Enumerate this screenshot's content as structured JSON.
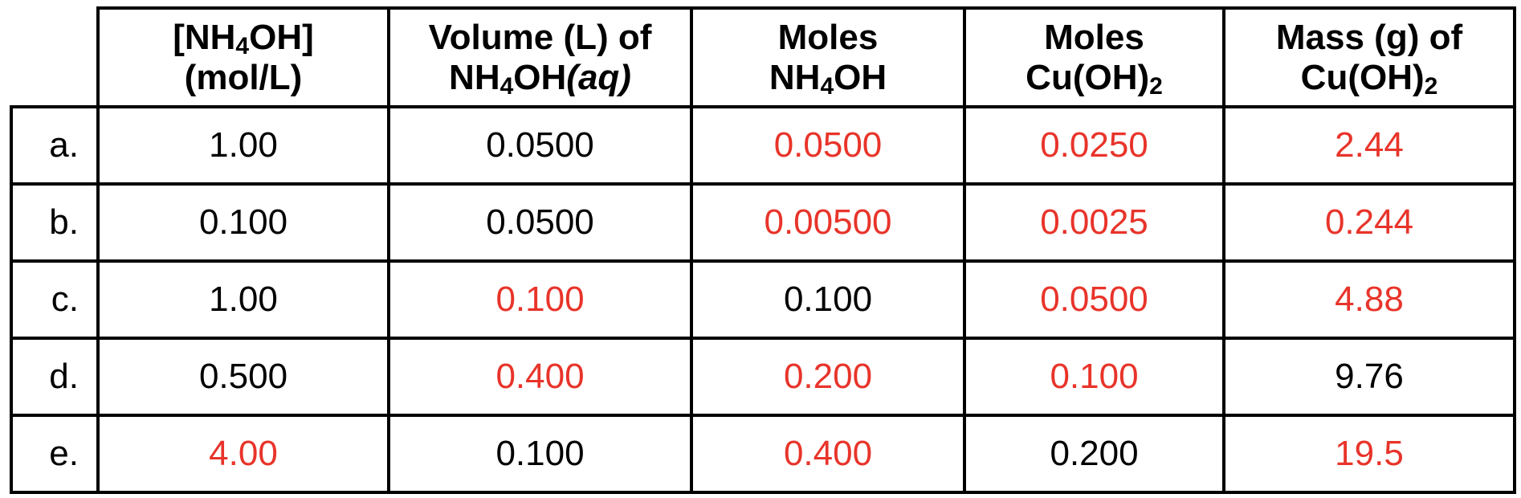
{
  "colors": {
    "answer": "#e8342a",
    "given": "#000000",
    "border": "#000000"
  },
  "headers": [
    {
      "line1": "[NH",
      "line1_sub": "4",
      "line1_after": "OH]",
      "line2": "(mol/L)"
    },
    {
      "line1": "Volume (L) of",
      "line2_pre": "NH",
      "line2_sub": "4",
      "line2_mid": "OH",
      "line2_italic": "(aq)"
    },
    {
      "line1": "Moles",
      "line2_pre": "NH",
      "line2_sub": "4",
      "line2_mid": "OH"
    },
    {
      "line1": "Moles",
      "line2_pre": "Cu(OH)",
      "line2_sub": "2"
    },
    {
      "line1": "Mass (g) of",
      "line2_pre": "Cu(OH)",
      "line2_sub": "2"
    }
  ],
  "rows": [
    {
      "label": "a.",
      "cells": [
        {
          "value": "1.00",
          "answer": false
        },
        {
          "value": "0.0500",
          "answer": false
        },
        {
          "value": "0.0500",
          "answer": true
        },
        {
          "value": "0.0250",
          "answer": true
        },
        {
          "value": "2.44",
          "answer": true
        }
      ]
    },
    {
      "label": "b.",
      "cells": [
        {
          "value": "0.100",
          "answer": false
        },
        {
          "value": "0.0500",
          "answer": false
        },
        {
          "value": "0.00500",
          "answer": true
        },
        {
          "value": "0.0025",
          "answer": true
        },
        {
          "value": "0.244",
          "answer": true
        }
      ]
    },
    {
      "label": "c.",
      "cells": [
        {
          "value": "1.00",
          "answer": false
        },
        {
          "value": "0.100",
          "answer": true
        },
        {
          "value": "0.100",
          "answer": false
        },
        {
          "value": "0.0500",
          "answer": true
        },
        {
          "value": "4.88",
          "answer": true
        }
      ]
    },
    {
      "label": "d.",
      "cells": [
        {
          "value": "0.500",
          "answer": false
        },
        {
          "value": "0.400",
          "answer": true
        },
        {
          "value": "0.200",
          "answer": true
        },
        {
          "value": "0.100",
          "answer": true
        },
        {
          "value": "9.76",
          "answer": false
        }
      ]
    },
    {
      "label": "e.",
      "cells": [
        {
          "value": "4.00",
          "answer": true
        },
        {
          "value": "0.100",
          "answer": false
        },
        {
          "value": "0.400",
          "answer": true
        },
        {
          "value": "0.200",
          "answer": false
        },
        {
          "value": "19.5",
          "answer": true
        }
      ]
    }
  ]
}
